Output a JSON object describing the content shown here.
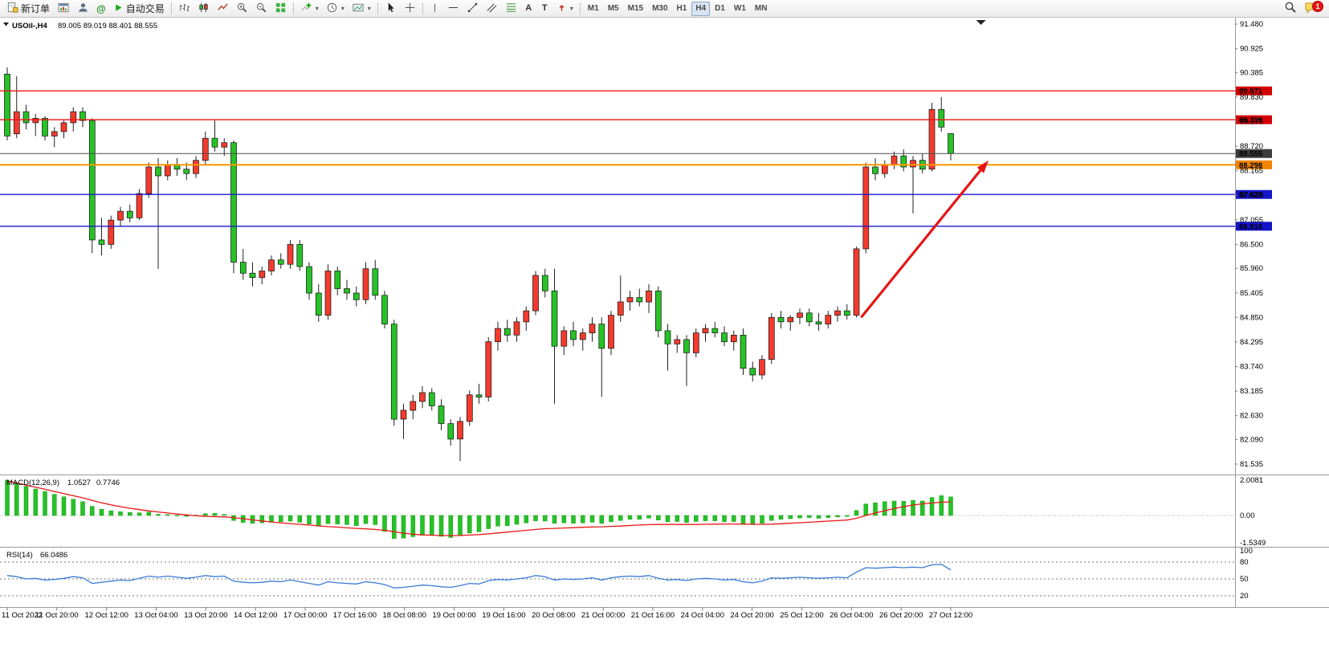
{
  "toolbar": {
    "new_order_label": "新订单",
    "autotrade_label": "自动交易",
    "timeframes": [
      "M1",
      "M5",
      "M15",
      "M30",
      "H1",
      "H4",
      "D1",
      "W1",
      "MN"
    ],
    "active_timeframe": "H4",
    "notification_count": "1",
    "icons": [
      "new-order-icon",
      "chart-window-icon",
      "profile-icon",
      "community-icon",
      "autotrade-play-icon",
      "bar-chart-icon",
      "candlestick-chart-icon",
      "line-chart-icon",
      "zoom-in-icon",
      "zoom-out-icon",
      "tile-windows-icon",
      "indicators-icon",
      "periodicity-icon",
      "objects-icon",
      "cursor-icon",
      "crosshair-icon",
      "vertical-line-icon",
      "horizontal-line-icon",
      "trendline-icon",
      "channel-icon",
      "fibonacci-icon",
      "text-icon",
      "text-label-icon",
      "arrows-icon",
      "search-icon",
      "chat-icon"
    ]
  },
  "chart_style": {
    "up": "#f23b2e",
    "down": "#27c227",
    "wick": "#222222",
    "macd_hist": "#27c227",
    "macd_signal": "#e81717",
    "rsi": "#3a7bd5",
    "arrow": "#e41515"
  },
  "chart_data": {
    "type": "candlestick",
    "title": "USOil-,H4",
    "ohlc_display": "89.005 89.019 88.401 88.555",
    "symbol": "USOil-",
    "timeframe": "H4",
    "ylim": [
      81.535,
      91.48
    ],
    "y_ticks": [
      "91.480",
      "90.925",
      "90.385",
      "89.830",
      "89.275",
      "88.720",
      "88.165",
      "87.610",
      "87.055",
      "86.500",
      "85.960",
      "85.405",
      "84.850",
      "84.295",
      "83.740",
      "83.185",
      "82.630",
      "82.090",
      "81.535"
    ],
    "x_ticks": [
      "11 Oct 2022",
      "11 Oct 20:00",
      "12 Oct 12:00",
      "13 Oct 04:00",
      "13 Oct 20:00",
      "14 Oct 12:00",
      "17 Oct 00:00",
      "17 Oct 16:00",
      "18 Oct 08:00",
      "19 Oct 00:00",
      "19 Oct 16:00",
      "20 Oct 08:00",
      "21 Oct 00:00",
      "21 Oct 16:00",
      "24 Oct 04:00",
      "24 Oct 20:00",
      "25 Oct 12:00",
      "26 Oct 04:00",
      "26 Oct 20:00",
      "27 Oct 12:00"
    ],
    "hlines": [
      {
        "price": 89.971,
        "tag": "89.971",
        "color": "#f01414",
        "tag_bg": "#d40000",
        "width": 1.4
      },
      {
        "price": 89.319,
        "tag": "89.319",
        "color": "#f01414",
        "tag_bg": "#d40000",
        "width": 1.4
      },
      {
        "price": 88.555,
        "tag": "88.555",
        "color": "#4d4d4d",
        "tag_bg": "#3c3c3c",
        "width": 1
      },
      {
        "price": 88.298,
        "tag": "88.298",
        "color": "#ff9500",
        "tag_bg": "#f08400",
        "width": 2
      },
      {
        "price": 87.629,
        "tag": "87.629",
        "color": "#1919d2",
        "tag_bg": "#1414c8",
        "width": 1.4
      },
      {
        "price": 86.91,
        "tag": "86.910",
        "color": "#1919d2",
        "tag_bg": "#1414c8",
        "width": 1.4
      }
    ],
    "ohlc": [
      [
        90.35,
        90.5,
        88.85,
        88.95
      ],
      [
        89.0,
        90.3,
        88.9,
        89.5
      ],
      [
        89.5,
        89.65,
        89.1,
        89.25
      ],
      [
        89.25,
        89.45,
        88.95,
        89.35
      ],
      [
        89.35,
        89.4,
        88.85,
        88.95
      ],
      [
        88.95,
        89.15,
        88.7,
        89.05
      ],
      [
        89.05,
        89.3,
        88.9,
        89.25
      ],
      [
        89.25,
        89.6,
        89.05,
        89.5
      ],
      [
        89.5,
        89.6,
        89.15,
        89.3
      ],
      [
        89.3,
        89.35,
        86.3,
        86.6
      ],
      [
        86.6,
        87.1,
        86.25,
        86.5
      ],
      [
        86.5,
        87.15,
        86.4,
        87.05
      ],
      [
        87.05,
        87.35,
        86.9,
        87.25
      ],
      [
        87.25,
        87.4,
        87.0,
        87.1
      ],
      [
        87.1,
        87.75,
        87.05,
        87.65
      ],
      [
        87.65,
        88.35,
        87.55,
        88.25
      ],
      [
        88.25,
        88.45,
        85.95,
        88.05
      ],
      [
        88.05,
        88.4,
        87.95,
        88.3
      ],
      [
        88.3,
        88.45,
        88.05,
        88.2
      ],
      [
        88.2,
        88.35,
        87.95,
        88.1
      ],
      [
        88.1,
        88.5,
        88.0,
        88.4
      ],
      [
        88.4,
        89.05,
        88.3,
        88.9
      ],
      [
        88.9,
        89.3,
        88.6,
        88.7
      ],
      [
        88.7,
        88.9,
        88.5,
        88.8
      ],
      [
        88.8,
        88.85,
        85.85,
        86.1
      ],
      [
        86.1,
        86.4,
        85.7,
        85.85
      ],
      [
        85.85,
        86.1,
        85.55,
        85.75
      ],
      [
        85.75,
        86.0,
        85.6,
        85.9
      ],
      [
        85.9,
        86.25,
        85.8,
        86.15
      ],
      [
        86.15,
        86.3,
        85.95,
        86.05
      ],
      [
        86.05,
        86.6,
        85.95,
        86.5
      ],
      [
        86.5,
        86.6,
        85.9,
        86.0
      ],
      [
        86.0,
        86.1,
        85.25,
        85.4
      ],
      [
        85.4,
        85.6,
        84.75,
        84.9
      ],
      [
        84.9,
        86.05,
        84.8,
        85.9
      ],
      [
        85.9,
        86.0,
        85.35,
        85.5
      ],
      [
        85.5,
        85.7,
        85.25,
        85.4
      ],
      [
        85.4,
        85.55,
        85.1,
        85.25
      ],
      [
        85.25,
        86.1,
        85.15,
        85.95
      ],
      [
        85.95,
        86.15,
        85.25,
        85.35
      ],
      [
        85.35,
        85.45,
        84.6,
        84.7
      ],
      [
        84.7,
        84.8,
        82.4,
        82.55
      ],
      [
        82.55,
        82.9,
        82.1,
        82.75
      ],
      [
        82.75,
        83.1,
        82.55,
        82.95
      ],
      [
        82.95,
        83.3,
        82.8,
        83.15
      ],
      [
        83.15,
        83.25,
        82.75,
        82.85
      ],
      [
        82.85,
        83.0,
        82.3,
        82.45
      ],
      [
        82.45,
        82.55,
        81.95,
        82.1
      ],
      [
        82.1,
        82.6,
        81.6,
        82.5
      ],
      [
        82.5,
        83.2,
        82.4,
        83.1
      ],
      [
        83.1,
        83.35,
        82.9,
        83.05
      ],
      [
        83.05,
        84.4,
        82.95,
        84.3
      ],
      [
        84.3,
        84.75,
        84.1,
        84.6
      ],
      [
        84.6,
        84.8,
        84.3,
        84.45
      ],
      [
        84.45,
        84.85,
        84.3,
        84.75
      ],
      [
        84.75,
        85.1,
        84.55,
        85.0
      ],
      [
        85.0,
        85.9,
        84.9,
        85.8
      ],
      [
        85.8,
        85.95,
        85.3,
        85.45
      ],
      [
        85.45,
        85.95,
        82.9,
        84.2
      ],
      [
        84.2,
        84.65,
        84.0,
        84.55
      ],
      [
        84.55,
        84.75,
        84.2,
        84.35
      ],
      [
        84.35,
        84.6,
        84.1,
        84.5
      ],
      [
        84.5,
        84.85,
        84.3,
        84.7
      ],
      [
        84.7,
        84.85,
        83.05,
        84.15
      ],
      [
        84.15,
        85.0,
        84.0,
        84.9
      ],
      [
        84.9,
        85.8,
        84.75,
        85.2
      ],
      [
        85.2,
        85.45,
        85.0,
        85.3
      ],
      [
        85.3,
        85.5,
        85.1,
        85.2
      ],
      [
        85.2,
        85.6,
        84.95,
        85.45
      ],
      [
        85.45,
        85.55,
        84.4,
        84.55
      ],
      [
        84.55,
        84.7,
        83.65,
        84.25
      ],
      [
        84.25,
        84.45,
        84.05,
        84.35
      ],
      [
        84.35,
        84.45,
        83.3,
        84.05
      ],
      [
        84.05,
        84.6,
        83.95,
        84.5
      ],
      [
        84.5,
        84.7,
        84.3,
        84.6
      ],
      [
        84.6,
        84.75,
        84.4,
        84.5
      ],
      [
        84.5,
        84.65,
        84.2,
        84.3
      ],
      [
        84.3,
        84.55,
        84.1,
        84.45
      ],
      [
        84.45,
        84.6,
        83.55,
        83.7
      ],
      [
        83.7,
        83.85,
        83.4,
        83.55
      ],
      [
        83.55,
        84.0,
        83.45,
        83.9
      ],
      [
        83.9,
        84.95,
        83.8,
        84.85
      ],
      [
        84.85,
        85.0,
        84.6,
        84.75
      ],
      [
        84.75,
        84.9,
        84.55,
        84.85
      ],
      [
        84.85,
        85.05,
        84.7,
        84.95
      ],
      [
        84.95,
        85.05,
        84.65,
        84.75
      ],
      [
        84.75,
        84.95,
        84.55,
        84.7
      ],
      [
        84.7,
        85.0,
        84.6,
        84.9
      ],
      [
        84.9,
        85.1,
        84.75,
        85.0
      ],
      [
        85.0,
        85.15,
        84.8,
        84.9
      ],
      [
        84.9,
        86.45,
        84.85,
        86.4
      ],
      [
        86.4,
        88.35,
        86.3,
        88.25
      ],
      [
        88.25,
        88.45,
        87.95,
        88.1
      ],
      [
        88.1,
        88.4,
        88.0,
        88.3
      ],
      [
        88.3,
        88.6,
        88.2,
        88.5
      ],
      [
        88.5,
        88.65,
        88.15,
        88.25
      ],
      [
        88.25,
        88.5,
        87.2,
        88.4
      ],
      [
        88.4,
        88.55,
        88.1,
        88.2
      ],
      [
        88.2,
        89.7,
        88.15,
        89.55
      ],
      [
        89.55,
        89.83,
        89.05,
        89.15
      ],
      [
        89.005,
        89.019,
        88.401,
        88.555
      ]
    ],
    "macd": {
      "label": "MACD(12,26,9)",
      "params": "12,26,9",
      "value_main": "1.0527",
      "value_signal": "0.7746",
      "axis_ticks": [
        "2.0081",
        "0.00",
        "-1.5349"
      ],
      "histogram": [
        2.0,
        1.82,
        1.65,
        1.5,
        1.36,
        1.2,
        1.06,
        0.92,
        0.78,
        0.52,
        0.36,
        0.27,
        0.21,
        0.17,
        0.15,
        0.19,
        0.07,
        0.05,
        0.01,
        -0.05,
        0.02,
        0.1,
        0.12,
        0.06,
        -0.28,
        -0.4,
        -0.45,
        -0.42,
        -0.38,
        -0.35,
        -0.32,
        -0.38,
        -0.48,
        -0.58,
        -0.46,
        -0.48,
        -0.52,
        -0.58,
        -0.46,
        -0.52,
        -0.9,
        -1.3,
        -1.28,
        -1.2,
        -1.12,
        -1.1,
        -1.18,
        -1.25,
        -1.15,
        -1.0,
        -0.92,
        -0.75,
        -0.6,
        -0.58,
        -0.5,
        -0.42,
        -0.3,
        -0.32,
        -0.45,
        -0.42,
        -0.44,
        -0.42,
        -0.38,
        -0.44,
        -0.36,
        -0.28,
        -0.22,
        -0.22,
        -0.15,
        -0.26,
        -0.36,
        -0.34,
        -0.4,
        -0.34,
        -0.3,
        -0.3,
        -0.36,
        -0.34,
        -0.46,
        -0.52,
        -0.44,
        -0.28,
        -0.22,
        -0.18,
        -0.14,
        -0.12,
        -0.16,
        -0.12,
        -0.08,
        -0.05,
        0.28,
        0.65,
        0.72,
        0.78,
        0.82,
        0.8,
        0.86,
        0.82,
        1.02,
        1.12,
        1.05
      ],
      "signal": [
        1.95,
        1.84,
        1.72,
        1.6,
        1.48,
        1.36,
        1.24,
        1.12,
        1.0,
        0.86,
        0.72,
        0.6,
        0.5,
        0.41,
        0.33,
        0.26,
        0.2,
        0.14,
        0.08,
        0.03,
        -0.02,
        -0.05,
        -0.07,
        -0.08,
        -0.12,
        -0.18,
        -0.25,
        -0.31,
        -0.37,
        -0.42,
        -0.46,
        -0.5,
        -0.54,
        -0.59,
        -0.63,
        -0.66,
        -0.7,
        -0.73,
        -0.76,
        -0.79,
        -0.84,
        -0.92,
        -1.0,
        -1.06,
        -1.1,
        -1.12,
        -1.13,
        -1.14,
        -1.13,
        -1.11,
        -1.08,
        -1.04,
        -0.99,
        -0.94,
        -0.89,
        -0.84,
        -0.79,
        -0.75,
        -0.73,
        -0.71,
        -0.69,
        -0.67,
        -0.65,
        -0.64,
        -0.62,
        -0.6,
        -0.57,
        -0.54,
        -0.52,
        -0.51,
        -0.51,
        -0.51,
        -0.51,
        -0.51,
        -0.5,
        -0.49,
        -0.48,
        -0.48,
        -0.49,
        -0.5,
        -0.5,
        -0.49,
        -0.47,
        -0.44,
        -0.41,
        -0.38,
        -0.35,
        -0.32,
        -0.29,
        -0.26,
        -0.16,
        0.0,
        0.14,
        0.27,
        0.39,
        0.5,
        0.59,
        0.66,
        0.71,
        0.75,
        0.77
      ],
      "range": [
        -1.5349,
        2.0081
      ]
    },
    "rsi": {
      "label": "RSI(14)",
      "period": 14,
      "value": "66.0486",
      "axis_ticks": [
        "100",
        "80",
        "50",
        "20"
      ],
      "levels": [
        80,
        50,
        20
      ],
      "values": [
        56,
        54,
        50,
        51,
        48,
        49,
        51,
        54,
        52,
        42,
        44,
        46,
        48,
        47,
        51,
        55,
        53,
        55,
        53,
        51,
        53,
        56,
        54,
        55,
        46,
        44,
        43,
        44,
        46,
        45,
        48,
        45,
        42,
        39,
        45,
        43,
        42,
        41,
        45,
        43,
        40,
        34,
        35,
        37,
        39,
        38,
        36,
        35,
        38,
        42,
        41,
        47,
        49,
        48,
        50,
        52,
        56,
        54,
        48,
        50,
        49,
        50,
        52,
        48,
        52,
        54,
        55,
        54,
        56,
        51,
        48,
        49,
        47,
        50,
        51,
        50,
        48,
        49,
        45,
        43,
        46,
        52,
        51,
        52,
        53,
        52,
        51,
        52,
        53,
        52,
        62,
        70,
        69,
        70,
        71,
        70,
        71,
        70,
        75,
        76,
        66.05
      ]
    },
    "annotations": {
      "arrow": {
        "from_bar": 90.5,
        "from_price": 84.85,
        "to_bar": 104,
        "to_price": 88.4
      },
      "shift_marker_bar": 103.2
    }
  }
}
